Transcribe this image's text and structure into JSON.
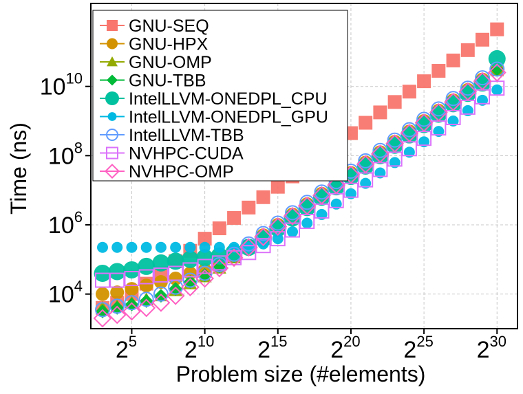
{
  "chart_data": {
    "type": "scatter",
    "title": "",
    "xlabel": "Problem size (#elements)",
    "ylabel": "Time (ns)",
    "x_scale": "log2",
    "y_scale": "log10",
    "xlim": [
      2.2,
      31.4
    ],
    "ylim": [
      1000,
      2500000000000
    ],
    "x_ticks": [
      {
        "base": "2",
        "exp": "5",
        "value": 32
      },
      {
        "base": "2",
        "exp": "10",
        "value": 1024
      },
      {
        "base": "2",
        "exp": "15",
        "value": 32768
      },
      {
        "base": "2",
        "exp": "20",
        "value": 1048576
      },
      {
        "base": "2",
        "exp": "25",
        "value": 33554432
      },
      {
        "base": "2",
        "exp": "30",
        "value": 1073741824
      }
    ],
    "y_ticks": [
      {
        "base": "10",
        "exp": "4",
        "value": 10000
      },
      {
        "base": "10",
        "exp": "6",
        "value": 1000000
      },
      {
        "base": "10",
        "exp": "8",
        "value": 100000000
      },
      {
        "base": "10",
        "exp": "10",
        "value": 10000000000
      }
    ],
    "grid": true,
    "legend_position": "top-left",
    "x_exponents": [
      3,
      4,
      5,
      6,
      7,
      8,
      9,
      10,
      11,
      12,
      13,
      14,
      15,
      16,
      17,
      18,
      19,
      20,
      21,
      22,
      23,
      24,
      25,
      26,
      27,
      28,
      29,
      30
    ],
    "series": [
      {
        "name": "GNU-SEQ",
        "color": "#f8766d",
        "marker": "square-filled",
        "log10_values": [
          3.6,
          3.75,
          4.0,
          4.3,
          4.6,
          4.95,
          5.25,
          5.6,
          5.9,
          6.2,
          6.5,
          6.8,
          7.1,
          7.4,
          7.7,
          8.0,
          8.3,
          8.65,
          8.95,
          9.25,
          9.55,
          9.85,
          10.15,
          10.45,
          10.75,
          11.05,
          11.35,
          11.65
        ]
      },
      {
        "name": "GNU-HPX",
        "color": "#d39200",
        "marker": "circle-filled",
        "log10_values": [
          4.0,
          4.05,
          4.15,
          4.25,
          4.35,
          4.45,
          4.6,
          4.7,
          4.9,
          5.1,
          5.4,
          5.7,
          6.0,
          6.3,
          6.6,
          6.9,
          7.2,
          7.5,
          7.8,
          8.1,
          8.4,
          8.7,
          9.0,
          9.3,
          9.6,
          9.9,
          10.2,
          10.5
        ]
      },
      {
        "name": "GNU-OMP",
        "color": "#93aa00",
        "marker": "triangle-filled",
        "log10_values": [
          3.6,
          3.65,
          3.75,
          3.85,
          3.95,
          4.1,
          4.3,
          4.5,
          4.75,
          5.05,
          5.35,
          5.65,
          5.95,
          6.25,
          6.55,
          6.85,
          7.15,
          7.45,
          7.75,
          8.05,
          8.35,
          8.65,
          8.95,
          9.25,
          9.55,
          9.85,
          10.15,
          10.45
        ]
      },
      {
        "name": "GNU-TBB",
        "color": "#00ba38",
        "marker": "diamond-filled",
        "log10_values": [
          3.5,
          3.6,
          3.7,
          3.8,
          3.95,
          4.15,
          4.35,
          4.55,
          4.8,
          5.1,
          5.4,
          5.7,
          6.0,
          6.3,
          6.6,
          6.9,
          7.2,
          7.5,
          7.8,
          8.1,
          8.4,
          8.7,
          9.0,
          9.3,
          9.6,
          9.9,
          10.2,
          10.5
        ]
      },
      {
        "name": "IntelLLVM-ONEDPL_CPU",
        "color": "#00c19f",
        "marker": "circle-filled-large",
        "log10_values": [
          4.6,
          4.65,
          4.7,
          4.8,
          4.9,
          4.95,
          5.0,
          5.05,
          5.1,
          5.2,
          5.35,
          5.6,
          5.9,
          6.2,
          6.5,
          6.8,
          7.1,
          7.4,
          7.7,
          8.0,
          8.3,
          8.6,
          8.9,
          9.2,
          9.5,
          9.8,
          10.1,
          10.8
        ]
      },
      {
        "name": "IntelLLVM-ONEDPL_GPU",
        "color": "#00b9e3",
        "marker": "circle-dot",
        "log10_values": [
          5.35,
          5.35,
          5.35,
          5.35,
          5.35,
          5.35,
          5.35,
          5.35,
          5.35,
          5.35,
          5.35,
          5.45,
          5.6,
          5.8,
          6.05,
          6.3,
          6.6,
          6.9,
          7.2,
          7.5,
          7.8,
          8.1,
          8.4,
          8.7,
          9.0,
          9.3,
          9.6,
          9.9
        ]
      },
      {
        "name": "IntelLLVM-TBB",
        "color": "#619cff",
        "marker": "circle-open",
        "log10_values": [
          3.55,
          3.65,
          3.75,
          3.85,
          4.0,
          4.2,
          4.4,
          4.6,
          4.85,
          5.15,
          5.45,
          5.75,
          6.05,
          6.35,
          6.65,
          6.95,
          7.25,
          7.55,
          7.85,
          8.15,
          8.45,
          8.75,
          9.05,
          9.35,
          9.65,
          9.95,
          10.25,
          10.5
        ]
      },
      {
        "name": "NVHPC-CUDA",
        "color": "#db72fb",
        "marker": "square-open",
        "log10_values": [
          4.4,
          4.4,
          4.45,
          4.5,
          4.55,
          4.6,
          4.7,
          4.8,
          4.9,
          5.05,
          5.2,
          5.4,
          5.6,
          5.85,
          6.1,
          6.4,
          6.7,
          7.0,
          7.3,
          7.6,
          7.9,
          8.2,
          8.5,
          8.8,
          9.1,
          9.4,
          9.7,
          9.95
        ]
      },
      {
        "name": "NVHPC-OMP",
        "color": "#ff61c3",
        "marker": "diamond-open",
        "log10_values": [
          3.3,
          3.4,
          3.5,
          3.6,
          3.75,
          3.95,
          4.2,
          4.45,
          4.75,
          5.05,
          5.35,
          5.65,
          5.95,
          6.25,
          6.55,
          6.85,
          7.15,
          7.45,
          7.75,
          8.05,
          8.35,
          8.65,
          8.95,
          9.25,
          9.55,
          9.85,
          10.15,
          10.4
        ]
      }
    ]
  }
}
